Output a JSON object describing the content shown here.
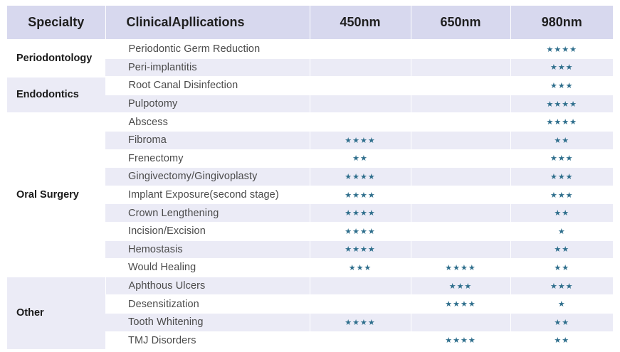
{
  "header": {
    "specialty": "Specialty",
    "applications": "ClinicalApllications",
    "nm450": "450nm",
    "nm650": "650nm",
    "nm980": "980nm"
  },
  "star_color": "#2e6e8c",
  "header_bg": "#d7d8ee",
  "row_shade": "#ebebf6",
  "groups": [
    {
      "specialty": "Periodontology",
      "rows": [
        {
          "app": "Periodontic Germ Reduction",
          "nm450": "",
          "nm650": "",
          "nm980": "★★★★"
        },
        {
          "app": "Peri-implantitis",
          "nm450": "",
          "nm650": "",
          "nm980": "★★★"
        }
      ]
    },
    {
      "specialty": "Endodontics",
      "rows": [
        {
          "app": "Root Canal Disinfection",
          "nm450": "",
          "nm650": "",
          "nm980": "★★★"
        },
        {
          "app": "Pulpotomy",
          "nm450": "",
          "nm650": "",
          "nm980": "★★★★"
        }
      ]
    },
    {
      "specialty": "Oral Surgery",
      "rows": [
        {
          "app": "Abscess",
          "nm450": "",
          "nm650": "",
          "nm980": "★★★★"
        },
        {
          "app": "Fibroma",
          "nm450": "★★★★",
          "nm650": "",
          "nm980": "★★"
        },
        {
          "app": "Frenectomy",
          "nm450": "★★",
          "nm650": "",
          "nm980": "★★★"
        },
        {
          "app": "Gingivectomy/Gingivoplasty",
          "nm450": "★★★★",
          "nm650": "",
          "nm980": "★★★"
        },
        {
          "app": "Implant Exposure(second stage)",
          "nm450": "★★★★",
          "nm650": "",
          "nm980": "★★★"
        },
        {
          "app": "Crown Lengthening",
          "nm450": "★★★★",
          "nm650": "",
          "nm980": "★★"
        },
        {
          "app": "Incision/Excision",
          "nm450": "★★★★",
          "nm650": "",
          "nm980": "★"
        },
        {
          "app": "Hemostasis",
          "nm450": "★★★★",
          "nm650": "",
          "nm980": "★★"
        },
        {
          "app": "Would Healing",
          "nm450": "★★★",
          "nm650": "★★★★",
          "nm980": "★★"
        }
      ]
    },
    {
      "specialty": "Other",
      "rows": [
        {
          "app": "Aphthous Ulcers",
          "nm450": "",
          "nm650": "★★★",
          "nm980": "★★★"
        },
        {
          "app": "Desensitization",
          "nm450": "",
          "nm650": "★★★★",
          "nm980": "★"
        },
        {
          "app": "Tooth Whitening",
          "nm450": "★★★★",
          "nm650": "",
          "nm980": "★★"
        },
        {
          "app": "TMJ Disorders",
          "nm450": "",
          "nm650": "★★★★",
          "nm980": "★★"
        }
      ]
    }
  ]
}
